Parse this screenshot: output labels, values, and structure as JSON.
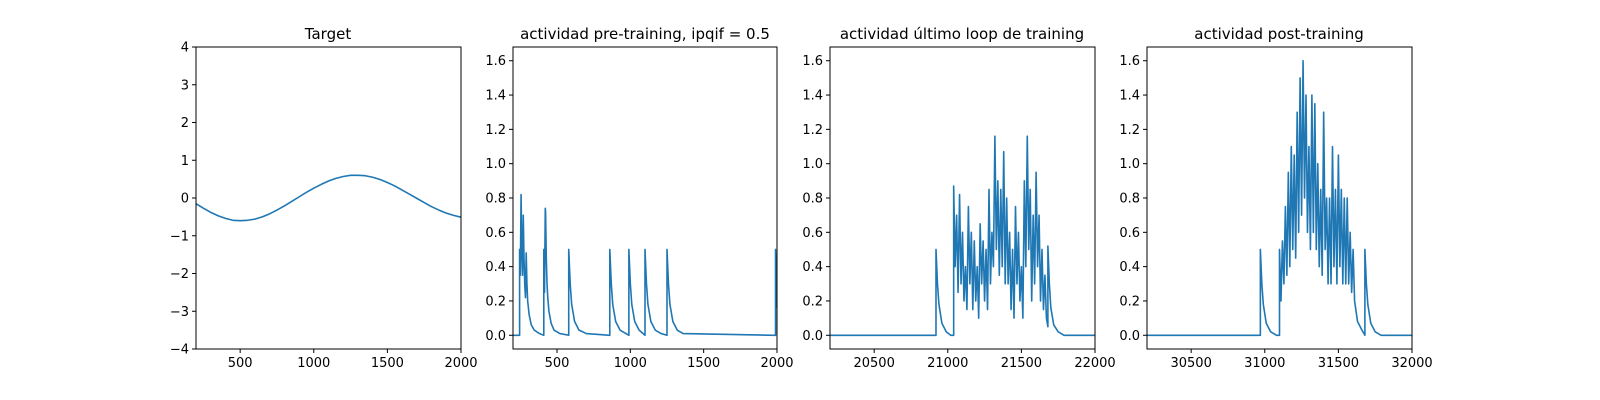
{
  "colors": {
    "line": "#1f77b4",
    "axes": "#000000",
    "background": "#ffffff"
  },
  "chart_data": [
    {
      "type": "line",
      "title": "Target",
      "xlabel": "",
      "ylabel": "",
      "xlim": [
        200,
        2000
      ],
      "ylim": [
        -4,
        4
      ],
      "xticks": [
        500,
        1000,
        1500,
        2000
      ],
      "xtick_labels": [
        "500",
        "1000",
        "1500",
        "2000"
      ],
      "yticks": [
        -4,
        -3,
        -2,
        -1,
        0,
        1,
        2,
        3,
        4
      ],
      "ytick_labels": [
        "−4",
        "−3",
        "−2",
        "−1",
        "0",
        "1",
        "2",
        "3",
        "4"
      ],
      "series": [
        {
          "x": [
            200,
            250,
            300,
            350,
            400,
            450,
            500,
            550,
            600,
            650,
            700,
            750,
            800,
            850,
            900,
            950,
            1000,
            1050,
            1100,
            1150,
            1200,
            1250,
            1300,
            1350,
            1400,
            1450,
            1500,
            1550,
            1600,
            1650,
            1700,
            1750,
            1800,
            1850,
            1900,
            1950,
            2000
          ],
          "y": [
            -0.15,
            -0.27,
            -0.38,
            -0.47,
            -0.54,
            -0.59,
            -0.6,
            -0.59,
            -0.56,
            -0.5,
            -0.42,
            -0.32,
            -0.21,
            -0.09,
            0.03,
            0.15,
            0.26,
            0.36,
            0.45,
            0.52,
            0.57,
            0.6,
            0.6,
            0.59,
            0.55,
            0.49,
            0.41,
            0.32,
            0.21,
            0.1,
            -0.01,
            -0.12,
            -0.23,
            -0.32,
            -0.4,
            -0.46,
            -0.51
          ]
        }
      ]
    },
    {
      "type": "line",
      "title": "actividad pre-training, ipqif = 0.5",
      "xlabel": "",
      "ylabel": "",
      "xlim": [
        200,
        2000
      ],
      "ylim": [
        -0.08,
        1.68
      ],
      "xticks": [
        500,
        1000,
        1500,
        2000
      ],
      "xtick_labels": [
        "500",
        "1000",
        "1500",
        "2000"
      ],
      "yticks": [
        0,
        0.2,
        0.4,
        0.6,
        0.8,
        1.0,
        1.2,
        1.4,
        1.6
      ],
      "ytick_labels": [
        "0.0",
        "0.2",
        "0.4",
        "0.6",
        "0.8",
        "1.0",
        "1.2",
        "1.4",
        "1.6"
      ],
      "series": [
        {
          "x": [
            200,
            245,
            245,
            250,
            255,
            260,
            265,
            270,
            275,
            280,
            285,
            290,
            295,
            300,
            310,
            325,
            345,
            380,
            410,
            410,
            415,
            420,
            422,
            427,
            432,
            437,
            445,
            460,
            480,
            520,
            580,
            580,
            590,
            600,
            620,
            650,
            700,
            860,
            860,
            870,
            880,
            900,
            930,
            970,
            990,
            990,
            1000,
            1010,
            1030,
            1060,
            1100,
            1100,
            1110,
            1120,
            1140,
            1170,
            1210,
            1250,
            1250,
            1260,
            1270,
            1290,
            1320,
            1360,
            1990,
            1990,
            1995,
            2000
          ],
          "y": [
            0,
            0,
            0.5,
            0.35,
            0.82,
            0.5,
            0.35,
            0.7,
            0.45,
            0.3,
            0.22,
            0.48,
            0.3,
            0.2,
            0.12,
            0.06,
            0.03,
            0.01,
            0,
            0.5,
            0.25,
            0.74,
            0.72,
            0.45,
            0.3,
            0.22,
            0.14,
            0.07,
            0.03,
            0.01,
            0,
            0.5,
            0.3,
            0.18,
            0.08,
            0.03,
            0.01,
            0,
            0.5,
            0.3,
            0.18,
            0.08,
            0.03,
            0.01,
            0,
            0.5,
            0.3,
            0.18,
            0.08,
            0.03,
            0,
            0.5,
            0.3,
            0.18,
            0.08,
            0.03,
            0.01,
            0,
            0.5,
            0.3,
            0.18,
            0.08,
            0.03,
            0.01,
            0,
            0.5,
            0.3,
            0.16
          ]
        }
      ]
    },
    {
      "type": "line",
      "title": "actividad último loop de training",
      "xlabel": "",
      "ylabel": "",
      "xlim": [
        20200,
        22000
      ],
      "ylim": [
        -0.08,
        1.68
      ],
      "xticks": [
        20500,
        21000,
        21500,
        22000
      ],
      "xtick_labels": [
        "20500",
        "21000",
        "21500",
        "22000"
      ],
      "yticks": [
        0,
        0.2,
        0.4,
        0.6,
        0.8,
        1.0,
        1.2,
        1.4,
        1.6
      ],
      "ytick_labels": [
        "0.0",
        "0.2",
        "0.4",
        "0.6",
        "0.8",
        "1.0",
        "1.2",
        "1.4",
        "1.6"
      ],
      "series": [
        {
          "x": [
            20200,
            20920,
            20920,
            20930,
            20940,
            20960,
            20990,
            21020,
            21040,
            21040,
            21050,
            21060,
            21070,
            21080,
            21090,
            21100,
            21110,
            21120,
            21130,
            21140,
            21150,
            21160,
            21170,
            21180,
            21190,
            21200,
            21210,
            21220,
            21230,
            21240,
            21250,
            21260,
            21270,
            21280,
            21290,
            21300,
            21310,
            21320,
            21330,
            21340,
            21350,
            21360,
            21370,
            21380,
            21390,
            21400,
            21410,
            21420,
            21430,
            21440,
            21450,
            21460,
            21470,
            21480,
            21490,
            21500,
            21510,
            21520,
            21530,
            21540,
            21550,
            21560,
            21570,
            21580,
            21590,
            21600,
            21610,
            21620,
            21630,
            21640,
            21650,
            21660,
            21670,
            21680,
            21680,
            21690,
            21700,
            21720,
            21750,
            21790,
            22000
          ],
          "y": [
            0,
            0,
            0.5,
            0.3,
            0.18,
            0.07,
            0.02,
            0,
            0,
            0.87,
            0.4,
            0.7,
            0.25,
            0.82,
            0.3,
            0.6,
            0.2,
            0.4,
            0.15,
            0.75,
            0.3,
            0.6,
            0.15,
            0.55,
            0.2,
            0.4,
            0.1,
            0.65,
            0.3,
            0.55,
            0.2,
            0.5,
            0.15,
            0.85,
            0.3,
            0.6,
            0.4,
            1.16,
            0.5,
            0.9,
            0.35,
            0.85,
            0.4,
            1.07,
            0.3,
            0.8,
            0.3,
            0.6,
            0.15,
            0.5,
            0.1,
            0.75,
            0.3,
            0.6,
            0.2,
            0.4,
            0.1,
            0.9,
            0.4,
            1.16,
            0.5,
            0.85,
            0.2,
            0.7,
            0.3,
            0.95,
            0.4,
            0.7,
            0.2,
            0.5,
            0.15,
            0.35,
            0.1,
            0.05,
            0.52,
            0.3,
            0.16,
            0.06,
            0.02,
            0,
            0
          ]
        }
      ]
    },
    {
      "type": "line",
      "title": "actividad post-training",
      "xlabel": "",
      "ylabel": "",
      "xlim": [
        30200,
        32000
      ],
      "ylim": [
        -0.08,
        1.68
      ],
      "xticks": [
        30500,
        31000,
        31500,
        32000
      ],
      "xtick_labels": [
        "30500",
        "31000",
        "31500",
        "32000"
      ],
      "yticks": [
        0,
        0.2,
        0.4,
        0.6,
        0.8,
        1.0,
        1.2,
        1.4,
        1.6
      ],
      "ytick_labels": [
        "0.0",
        "0.2",
        "0.4",
        "0.6",
        "0.8",
        "1.0",
        "1.2",
        "1.4",
        "1.6"
      ],
      "series": [
        {
          "x": [
            30200,
            30970,
            30970,
            30980,
            30990,
            31010,
            31040,
            31080,
            31100,
            31100,
            31110,
            31120,
            31130,
            31140,
            31150,
            31160,
            31170,
            31180,
            31190,
            31200,
            31210,
            31220,
            31230,
            31240,
            31250,
            31260,
            31270,
            31280,
            31290,
            31300,
            31310,
            31320,
            31330,
            31340,
            31350,
            31360,
            31370,
            31380,
            31390,
            31400,
            31410,
            31420,
            31430,
            31440,
            31450,
            31460,
            31470,
            31480,
            31490,
            31500,
            31510,
            31520,
            31530,
            31540,
            31550,
            31560,
            31570,
            31580,
            31590,
            31600,
            31610,
            31630,
            31660,
            31680,
            31680,
            31690,
            31700,
            31720,
            31750,
            31790,
            32000
          ],
          "y": [
            0,
            0,
            0.5,
            0.3,
            0.18,
            0.07,
            0.02,
            0,
            0,
            0.5,
            0.2,
            0.55,
            0.3,
            0.75,
            0.35,
            0.95,
            0.4,
            1.1,
            0.5,
            1.05,
            0.45,
            1.3,
            0.6,
            1.5,
            0.7,
            1.6,
            0.8,
            1.4,
            0.6,
            1.1,
            0.5,
            1.4,
            0.6,
            1.35,
            0.5,
            1.0,
            0.4,
            0.85,
            0.35,
            1.3,
            0.5,
            0.8,
            0.3,
            0.8,
            0.3,
            1.1,
            0.4,
            0.85,
            0.3,
            1.05,
            0.4,
            0.85,
            0.3,
            0.8,
            0.3,
            0.8,
            0.3,
            0.6,
            0.25,
            0.5,
            0.2,
            0.08,
            0.03,
            0,
            0.5,
            0.3,
            0.18,
            0.07,
            0.02,
            0,
            0
          ]
        }
      ]
    }
  ]
}
